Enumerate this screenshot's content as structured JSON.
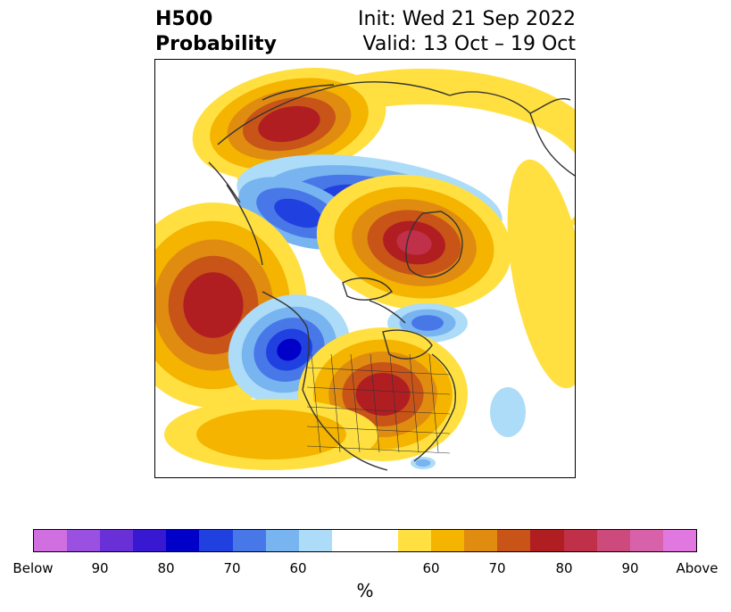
{
  "title": {
    "left_line1": "H500",
    "left_line2": "Probability",
    "right_line1": "Init: Wed 21 Sep 2022",
    "right_line2": "Valid: 13 Oct – 19 Oct"
  },
  "colorbar": {
    "unit": "%",
    "tick_labels": [
      "Below",
      "90",
      "80",
      "70",
      "60",
      "60",
      "70",
      "80",
      "90",
      "Above"
    ],
    "colors": [
      "#d070e0",
      "#9a50e0",
      "#6a30d8",
      "#3818d0",
      "#0000c8",
      "#2040e0",
      "#4878e8",
      "#78b4f0",
      "#acdcf8",
      "#ffffff",
      "#ffe040",
      "#f4b400",
      "#e08c10",
      "#c85418",
      "#b01e22",
      "#c03048",
      "#cc4a7c",
      "#d862aa",
      "#e078e0"
    ]
  },
  "map": {
    "colors": {
      "red_core": "#c03048",
      "red": "#b01e22",
      "orange_red": "#c85418",
      "orange": "#e08c10",
      "gold": "#f4b400",
      "yellow": "#ffe040",
      "blue_light": "#acdcf8",
      "blue_mid": "#78b4f0",
      "blue": "#4878e8",
      "blue_dark": "#2040e0",
      "blue_core": "#0000c8",
      "coast": "#333333"
    }
  }
}
